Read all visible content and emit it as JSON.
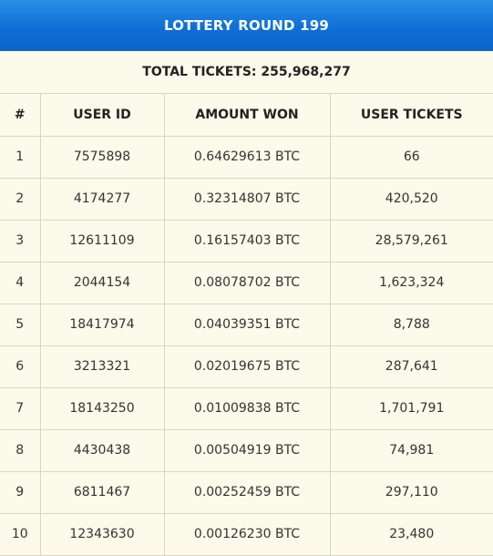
{
  "header": {
    "title": "LOTTERY ROUND 199"
  },
  "summary": {
    "total_tickets": "TOTAL TICKETS: 255,968,277"
  },
  "table": {
    "columns": [
      "#",
      "USER ID",
      "AMOUNT WON",
      "USER TICKETS"
    ],
    "rows": [
      {
        "rank": "1",
        "user_id": "7575898",
        "amount": "0.64629613 BTC",
        "tickets": "66"
      },
      {
        "rank": "2",
        "user_id": "4174277",
        "amount": "0.32314807 BTC",
        "tickets": "420,520"
      },
      {
        "rank": "3",
        "user_id": "12611109",
        "amount": "0.16157403 BTC",
        "tickets": "28,579,261"
      },
      {
        "rank": "4",
        "user_id": "2044154",
        "amount": "0.08078702 BTC",
        "tickets": "1,623,324"
      },
      {
        "rank": "5",
        "user_id": "18417974",
        "amount": "0.04039351 BTC",
        "tickets": "8,788"
      },
      {
        "rank": "6",
        "user_id": "3213321",
        "amount": "0.02019675 BTC",
        "tickets": "287,641"
      },
      {
        "rank": "7",
        "user_id": "18143250",
        "amount": "0.01009838 BTC",
        "tickets": "1,701,791"
      },
      {
        "rank": "8",
        "user_id": "4430438",
        "amount": "0.00504919 BTC",
        "tickets": "74,981"
      },
      {
        "rank": "9",
        "user_id": "6811467",
        "amount": "0.00252459 BTC",
        "tickets": "297,110"
      },
      {
        "rank": "10",
        "user_id": "12343630",
        "amount": "0.00126230 BTC",
        "tickets": "23,480"
      }
    ]
  },
  "colors": {
    "header_gradient_top": "#2a8ee8",
    "header_gradient_bottom": "#0a63c8",
    "background": "#fcfaea",
    "grid_line": "#d9d6c3"
  }
}
